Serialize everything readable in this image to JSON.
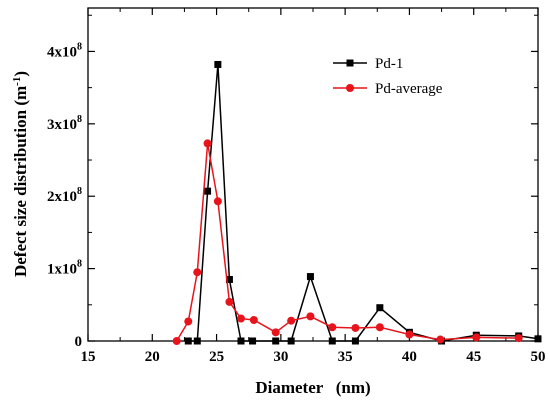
{
  "chart_data": {
    "type": "line",
    "xlabel": "Diameter   (nm)",
    "ylabel": "Defect size distribution (m",
    "ylabel_sup": "-1",
    "ylabel_close": ")",
    "xlim": [
      15,
      50
    ],
    "ylim": [
      0,
      460000000.0
    ],
    "x_ticks": [
      15,
      20,
      25,
      30,
      35,
      40,
      45,
      50
    ],
    "x_tick_labels": [
      "15",
      "20",
      "25",
      "30",
      "35",
      "40",
      "45",
      "50"
    ],
    "y_ticks": [
      0,
      100000000.0,
      200000000.0,
      300000000.0,
      400000000.0
    ],
    "y_tick_labels": [
      {
        "base": "0",
        "exp": ""
      },
      {
        "base": "1x10",
        "exp": "8"
      },
      {
        "base": "2x10",
        "exp": "8"
      },
      {
        "base": "3x10",
        "exp": "8"
      },
      {
        "base": "4x10",
        "exp": "8"
      }
    ],
    "legend_position": "top-right",
    "series": [
      {
        "name": "Pd-1",
        "color": "#000000",
        "marker": "square",
        "x": [
          22.8,
          23.5,
          24.3,
          25.1,
          26.0,
          26.9,
          27.8,
          29.6,
          30.8,
          32.3,
          34.0,
          35.8,
          37.7,
          40.0,
          42.5,
          45.2,
          48.5,
          50.0
        ],
        "y": [
          0,
          0,
          207000000.0,
          382000000.0,
          85000000.0,
          0,
          0,
          0,
          0,
          89000000.0,
          0,
          0,
          46000000.0,
          12000000.0,
          0,
          8000000.0,
          7000000.0,
          3000000.0
        ]
      },
      {
        "name": "Pd-average",
        "color": "#e8141c",
        "marker": "circle",
        "x": [
          21.9,
          22.8,
          23.5,
          24.3,
          25.1,
          26.0,
          26.9,
          27.9,
          29.6,
          30.8,
          32.3,
          34.0,
          35.8,
          37.7,
          40.0,
          42.4,
          45.2,
          48.5
        ],
        "y": [
          0,
          27000000.0,
          95000000.0,
          273000000.0,
          193000000.0,
          54000000.0,
          31000000.0,
          29000000.0,
          12000000.0,
          28000000.0,
          34000000.0,
          19000000.0,
          18000000.0,
          19000000.0,
          9000000.0,
          2000000.0,
          5000000.0,
          4000000.0
        ]
      }
    ]
  }
}
